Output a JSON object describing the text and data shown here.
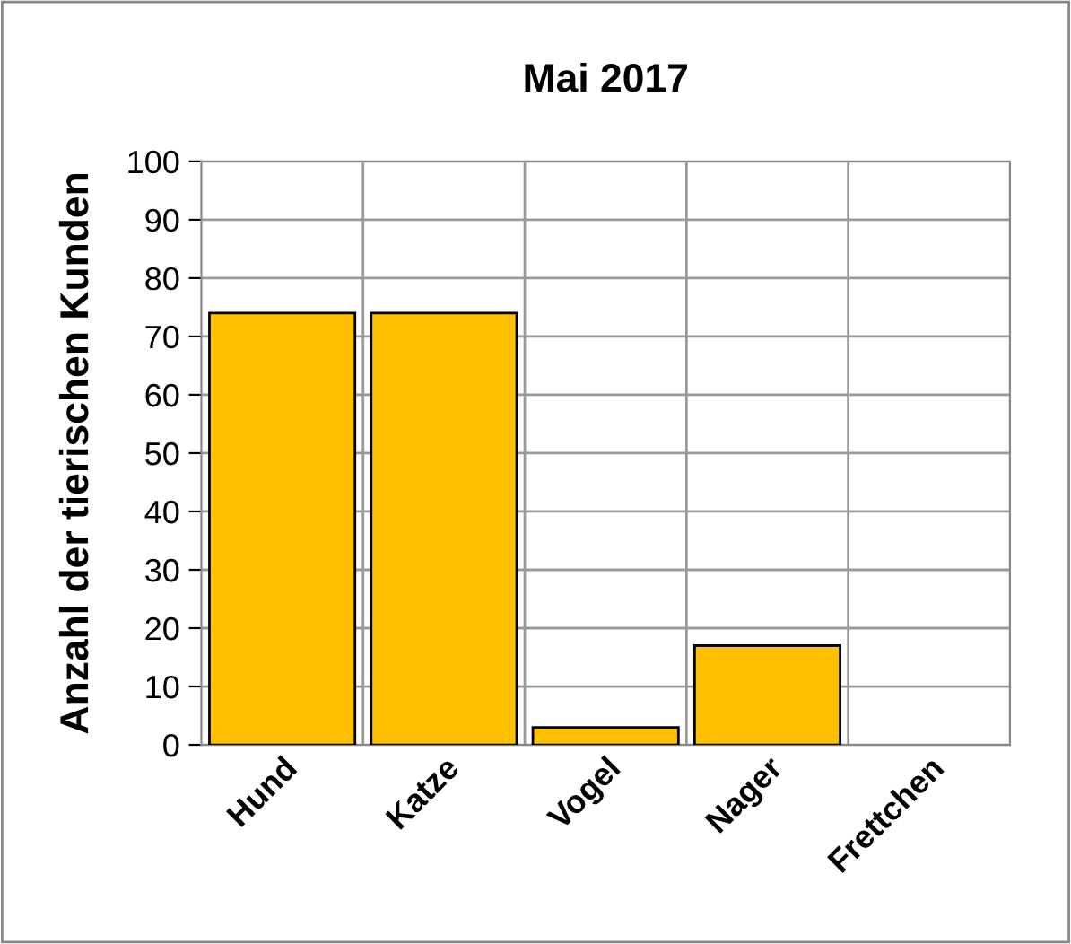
{
  "chart_data": {
    "type": "bar",
    "title": "Mai 2017",
    "ylabel": "Anzahl der tierischen Kunden",
    "categories": [
      "Hund",
      "Katze",
      "Vogel",
      "Nager",
      "Frettchen"
    ],
    "values": [
      74,
      74,
      3,
      17,
      0
    ],
    "color": "#ffc000",
    "ylim": [
      0,
      100
    ],
    "yticks": [
      0,
      10,
      20,
      30,
      40,
      50,
      60,
      70,
      80,
      90,
      100
    ],
    "grid": true,
    "legend": false
  }
}
